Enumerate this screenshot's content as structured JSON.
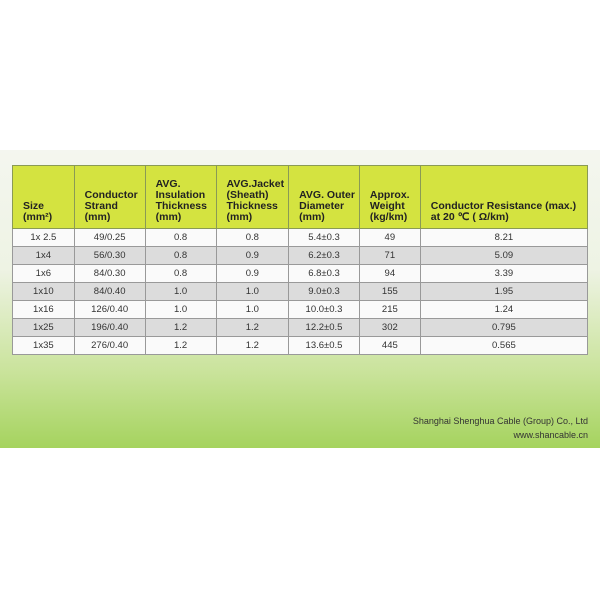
{
  "table": {
    "headers": [
      "Size (mm²)",
      "Conductor Strand (mm)",
      "AVG. Insulation Thickness (mm)",
      "AVG.Jacket (Sheath) Thickness (mm)",
      "AVG. Outer Diameter (mm)",
      "Approx. Weight (kg/km)",
      "Conductor Resistance (max.) at 20 ℃ ( Ω/km)"
    ],
    "rows": [
      [
        "1x 2.5",
        "49/0.25",
        "0.8",
        "0.8",
        "5.4±0.3",
        "49",
        "8.21"
      ],
      [
        "1x4",
        "56/0.30",
        "0.8",
        "0.9",
        "6.2±0.3",
        "71",
        "5.09"
      ],
      [
        "1x6",
        "84/0.30",
        "0.8",
        "0.9",
        "6.8±0.3",
        "94",
        "3.39"
      ],
      [
        "1x10",
        "84/0.40",
        "1.0",
        "1.0",
        "9.0±0.3",
        "155",
        "1.95"
      ],
      [
        "1x16",
        "126/0.40",
        "1.0",
        "1.0",
        "10.0±0.3",
        "215",
        "1.24"
      ],
      [
        "1x25",
        "196/0.40",
        "1.2",
        "1.2",
        "12.2±0.5",
        "302",
        "0.795"
      ],
      [
        "1x35",
        "276/0.40",
        "1.2",
        "1.2",
        "13.6±0.5",
        "445",
        "0.565"
      ]
    ]
  },
  "footer": {
    "company": "Shanghai Shenghua Cable (Group) Co., Ltd",
    "website": "www.shancable.cn"
  },
  "colors": {
    "header": "#d4e340",
    "gradient_bottom": "#a5d35e"
  }
}
